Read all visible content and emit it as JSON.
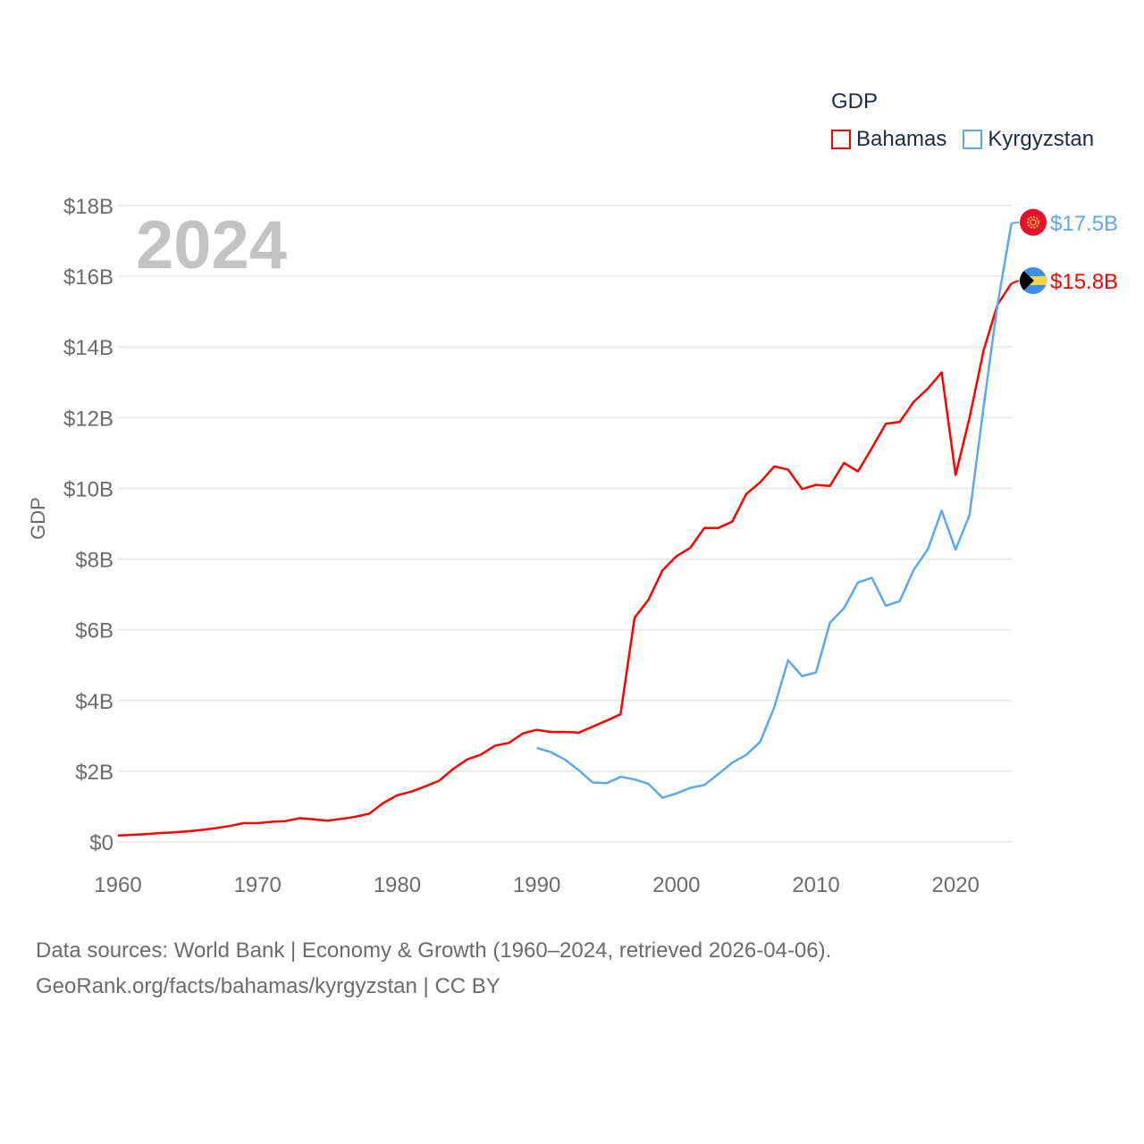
{
  "legend": {
    "title": "GDP",
    "items": [
      {
        "label": "Bahamas",
        "color": "#ff0000"
      },
      {
        "label": "Kyrgyzstan",
        "color": "#5ba8ec"
      }
    ]
  },
  "footer": {
    "line1": "Data sources: World Bank | Economy & Growth (1960–2024, retrieved 2026-04-06).",
    "line2": "GeoRank.org/facts/bahamas/kyrgyzstan | CC BY"
  },
  "chart_data": {
    "type": "line",
    "title": "GDP",
    "ylabel": "GDP",
    "xlabel": "",
    "year_watermark": "2024",
    "xlim": [
      1960,
      2024
    ],
    "ylim": [
      0,
      18
    ],
    "grid": true,
    "legend_position": "top-right",
    "x_ticks": [
      "1960",
      "1970",
      "1980",
      "1990",
      "2000",
      "2010",
      "2020"
    ],
    "y_ticks": [
      {
        "value": 0,
        "label": "$0"
      },
      {
        "value": 2,
        "label": "$2B"
      },
      {
        "value": 4,
        "label": "$4B"
      },
      {
        "value": 6,
        "label": "$6B"
      },
      {
        "value": 8,
        "label": "$8B"
      },
      {
        "value": 10,
        "label": "$10B"
      },
      {
        "value": 12,
        "label": "$12B"
      },
      {
        "value": 14,
        "label": "$14B"
      },
      {
        "value": 16,
        "label": "$16B"
      },
      {
        "value": 18,
        "label": "$18B"
      }
    ],
    "series": [
      {
        "name": "Bahamas",
        "color": "#ff0000",
        "flag": "bahamas-flag",
        "end_label": "$15.8B",
        "start_year": 1960,
        "values": [
          0.18,
          0.2,
          0.22,
          0.25,
          0.27,
          0.3,
          0.34,
          0.39,
          0.45,
          0.53,
          0.53,
          0.57,
          0.59,
          0.67,
          0.64,
          0.6,
          0.65,
          0.71,
          0.8,
          1.1,
          1.32,
          1.42,
          1.57,
          1.73,
          2.06,
          2.33,
          2.47,
          2.72,
          2.8,
          3.07,
          3.17,
          3.11,
          3.11,
          3.09,
          3.26,
          3.43,
          3.61,
          6.34,
          6.85,
          7.68,
          8.08,
          8.32,
          8.88,
          8.88,
          9.06,
          9.84,
          10.17,
          10.62,
          10.53,
          9.98,
          10.1,
          10.07,
          10.72,
          10.48,
          11.14,
          11.83,
          11.88,
          12.45,
          12.82,
          13.28,
          10.38,
          12.0,
          13.9,
          15.2,
          15.8
        ]
      },
      {
        "name": "Kyrgyzstan",
        "color": "#5ba8ec",
        "flag": "kyrgyzstan-flag",
        "end_label": "$17.5B",
        "start_year": 1990,
        "values": [
          2.66,
          2.54,
          2.33,
          2.03,
          1.68,
          1.66,
          1.84,
          1.77,
          1.64,
          1.25,
          1.37,
          1.53,
          1.61,
          1.92,
          2.24,
          2.46,
          2.83,
          3.8,
          5.14,
          4.69,
          4.79,
          6.2,
          6.61,
          7.34,
          7.47,
          6.68,
          6.81,
          7.7,
          8.27,
          9.37,
          8.27,
          9.25,
          12.3,
          15.2,
          17.5
        ]
      }
    ]
  }
}
